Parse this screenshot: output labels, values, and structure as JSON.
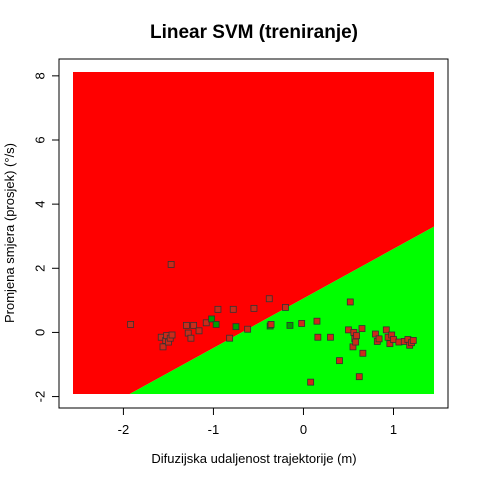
{
  "chart_data": {
    "type": "scatter",
    "title": "Linear SVM (treniranje)",
    "xlabel": "Difuzijska udaljenost trajektorije (m)",
    "ylabel": "Promjena smjera (prosjek) (°/s)",
    "xlim": [
      -2.56,
      1.45
    ],
    "ylim": [
      -1.92,
      8.12
    ],
    "x_ticks": [
      -2,
      -1,
      0,
      1
    ],
    "y_ticks": [
      -2,
      0,
      2,
      4,
      6,
      8
    ],
    "regions": [
      {
        "color": "#ff0000",
        "position": "above boundary"
      },
      {
        "color": "#00ff00",
        "position": "below boundary"
      }
    ],
    "decision_boundary": [
      [
        -1.93,
        -1.92
      ],
      [
        1.45,
        3.3
      ]
    ],
    "points": [
      {
        "x": -1.92,
        "y": 0.25,
        "cls": "red"
      },
      {
        "x": -1.47,
        "y": 2.12,
        "cls": "red"
      },
      {
        "x": -1.58,
        "y": -0.15,
        "cls": "red"
      },
      {
        "x": -1.56,
        "y": -0.45,
        "cls": "red"
      },
      {
        "x": -1.53,
        "y": -0.25,
        "cls": "red"
      },
      {
        "x": -1.52,
        "y": -0.1,
        "cls": "red"
      },
      {
        "x": -1.5,
        "y": -0.3,
        "cls": "red"
      },
      {
        "x": -1.48,
        "y": -0.18,
        "cls": "red"
      },
      {
        "x": -1.46,
        "y": -0.08,
        "cls": "red"
      },
      {
        "x": -1.3,
        "y": 0.22,
        "cls": "red"
      },
      {
        "x": -1.28,
        "y": -0.02,
        "cls": "red"
      },
      {
        "x": -1.25,
        "y": -0.18,
        "cls": "red"
      },
      {
        "x": -1.22,
        "y": 0.22,
        "cls": "red"
      },
      {
        "x": -1.16,
        "y": 0.05,
        "cls": "red"
      },
      {
        "x": -1.08,
        "y": 0.3,
        "cls": "red"
      },
      {
        "x": -1.02,
        "y": 0.42,
        "cls": "green"
      },
      {
        "x": -0.97,
        "y": 0.25,
        "cls": "green"
      },
      {
        "x": -0.95,
        "y": 0.72,
        "cls": "red"
      },
      {
        "x": -0.82,
        "y": -0.18,
        "cls": "red"
      },
      {
        "x": -0.78,
        "y": 0.72,
        "cls": "red"
      },
      {
        "x": -0.75,
        "y": 0.18,
        "cls": "green"
      },
      {
        "x": -0.62,
        "y": 0.1,
        "cls": "red"
      },
      {
        "x": -0.55,
        "y": 0.75,
        "cls": "red"
      },
      {
        "x": -0.38,
        "y": 1.05,
        "cls": "red"
      },
      {
        "x": -0.37,
        "y": 0.2,
        "cls": "green"
      },
      {
        "x": -0.36,
        "y": 0.25,
        "cls": "red"
      },
      {
        "x": -0.2,
        "y": 0.78,
        "cls": "red"
      },
      {
        "x": -0.15,
        "y": 0.22,
        "cls": "green"
      },
      {
        "x": -0.02,
        "y": 0.28,
        "cls": "red"
      },
      {
        "x": 0.08,
        "y": -1.55,
        "cls": "red"
      },
      {
        "x": 0.15,
        "y": 0.35,
        "cls": "red"
      },
      {
        "x": 0.16,
        "y": -0.15,
        "cls": "red"
      },
      {
        "x": 0.3,
        "y": -0.15,
        "cls": "red"
      },
      {
        "x": 0.4,
        "y": -0.88,
        "cls": "red"
      },
      {
        "x": 0.5,
        "y": 0.08,
        "cls": "red"
      },
      {
        "x": 0.52,
        "y": 0.95,
        "cls": "red"
      },
      {
        "x": 0.55,
        "y": -0.45,
        "cls": "red"
      },
      {
        "x": 0.56,
        "y": 0.0,
        "cls": "red"
      },
      {
        "x": 0.57,
        "y": -0.2,
        "cls": "red"
      },
      {
        "x": 0.58,
        "y": -0.3,
        "cls": "red"
      },
      {
        "x": 0.59,
        "y": -0.1,
        "cls": "red"
      },
      {
        "x": 0.62,
        "y": -1.38,
        "cls": "red"
      },
      {
        "x": 0.65,
        "y": 0.12,
        "cls": "red"
      },
      {
        "x": 0.66,
        "y": -0.65,
        "cls": "red"
      },
      {
        "x": 0.8,
        "y": -0.05,
        "cls": "red"
      },
      {
        "x": 0.82,
        "y": -0.28,
        "cls": "red"
      },
      {
        "x": 0.84,
        "y": -0.2,
        "cls": "red"
      },
      {
        "x": 0.92,
        "y": 0.08,
        "cls": "red"
      },
      {
        "x": 0.94,
        "y": -0.15,
        "cls": "red"
      },
      {
        "x": 0.96,
        "y": -0.35,
        "cls": "red"
      },
      {
        "x": 0.98,
        "y": -0.08,
        "cls": "red"
      },
      {
        "x": 1.0,
        "y": -0.22,
        "cls": "red"
      },
      {
        "x": 1.06,
        "y": -0.3,
        "cls": "red"
      },
      {
        "x": 1.12,
        "y": -0.28,
        "cls": "red"
      },
      {
        "x": 1.16,
        "y": -0.22,
        "cls": "red"
      },
      {
        "x": 1.18,
        "y": -0.4,
        "cls": "red"
      },
      {
        "x": 1.2,
        "y": -0.32,
        "cls": "red"
      },
      {
        "x": 1.22,
        "y": -0.25,
        "cls": "red"
      }
    ],
    "grid": false,
    "legend": "none"
  }
}
